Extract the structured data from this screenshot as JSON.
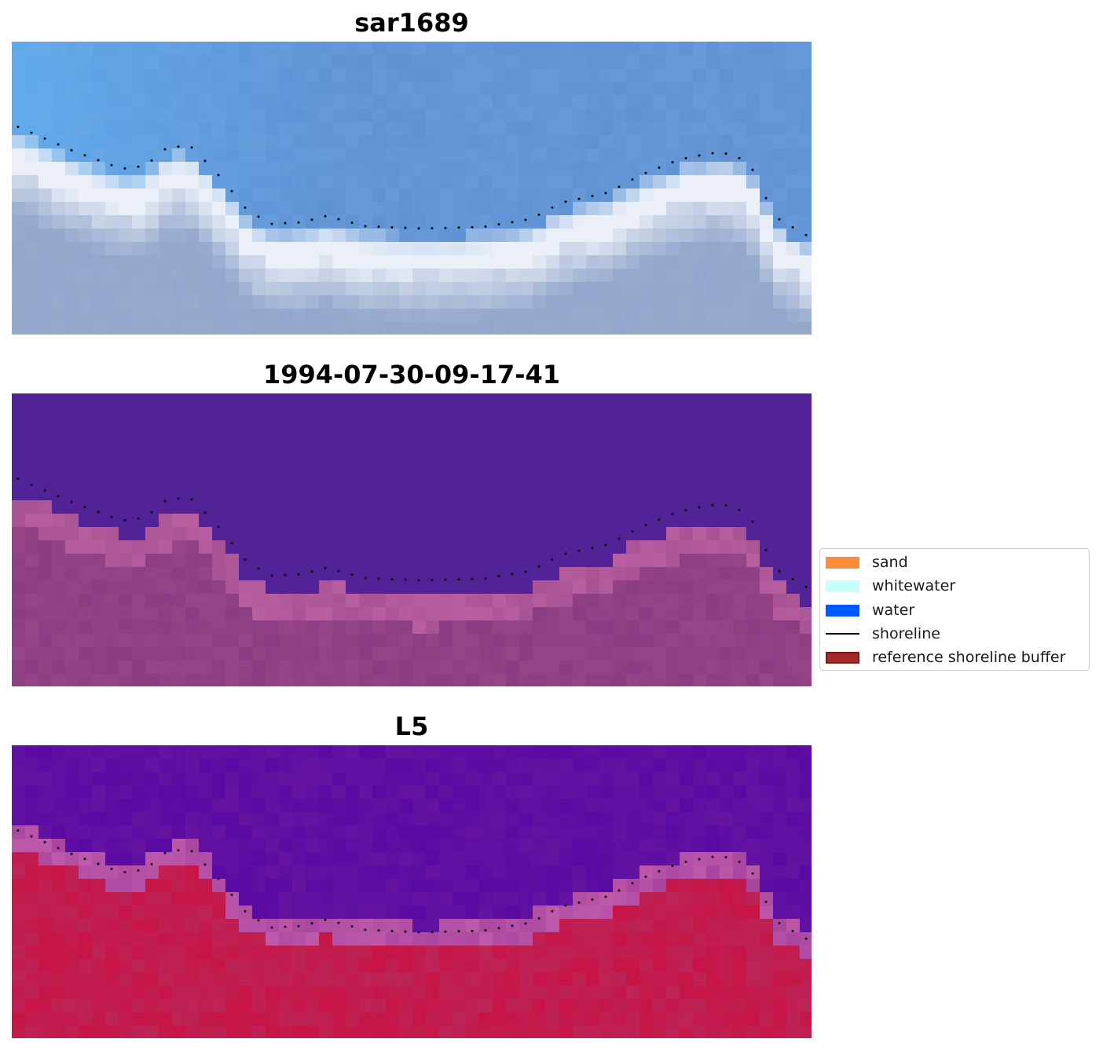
{
  "panels": [
    {
      "title": "sar1689",
      "style": "rgb"
    },
    {
      "title": "1994-07-30-09-17-41",
      "style": "classified"
    },
    {
      "title": "L5",
      "style": "index"
    }
  ],
  "legend": {
    "items": [
      {
        "label": "sand",
        "color": "#ff8c3c",
        "kind": "patch"
      },
      {
        "label": "whitewater",
        "color": "#c8fffc",
        "kind": "patch"
      },
      {
        "label": "water",
        "color": "#0058ff",
        "kind": "patch"
      },
      {
        "label": "shoreline",
        "color": "#000000",
        "kind": "line"
      },
      {
        "label": "reference shoreline buffer",
        "color": "#a52a2a",
        "kind": "patch"
      }
    ]
  }
}
